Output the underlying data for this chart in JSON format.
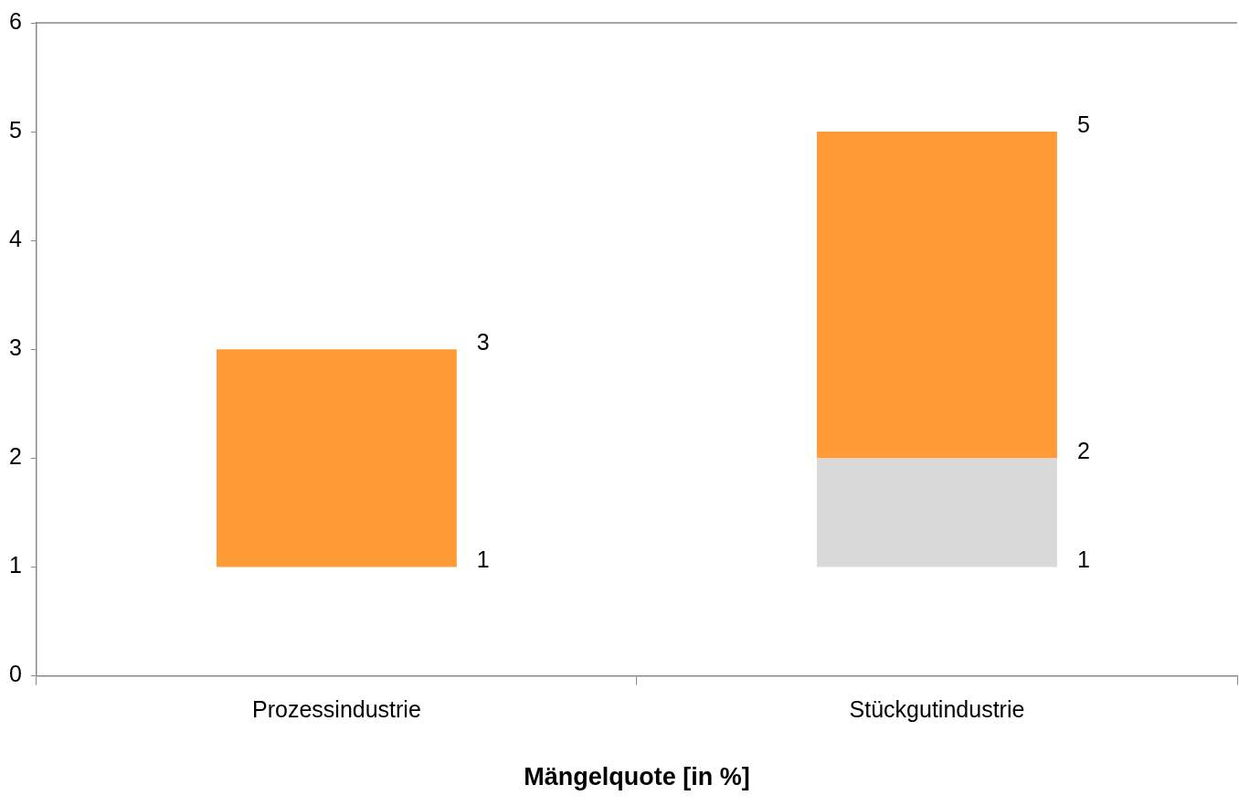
{
  "chart_data": {
    "type": "bar",
    "xlabel": "Mängelquote [in %]",
    "categories": [
      "Prozessindustrie",
      "Stückgutindustrie"
    ],
    "series": [
      {
        "color": "#d9d9d9",
        "values": [
          null,
          1
        ],
        "base": [
          null,
          1
        ]
      },
      {
        "color": "#ff9b36",
        "values": [
          2,
          3
        ],
        "base": [
          1,
          2
        ]
      }
    ],
    "ylim": [
      0,
      6
    ],
    "yticks": [
      0,
      1,
      2,
      3,
      4,
      5,
      6
    ],
    "grid": false,
    "legend": false,
    "annotations": [
      "1",
      "3",
      "1",
      "2",
      "5"
    ]
  }
}
